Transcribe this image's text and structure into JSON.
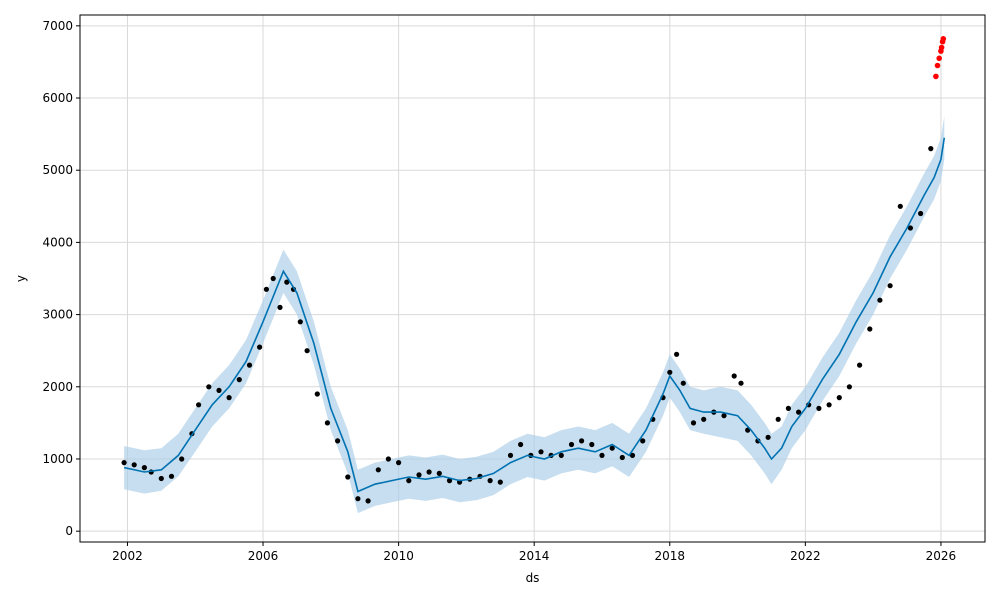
{
  "chart_data": {
    "type": "line",
    "xlabel": "ds",
    "ylabel": "y",
    "grid": true,
    "xlim": [
      2000.6,
      2027.3
    ],
    "ylim": [
      -150,
      7150
    ],
    "x_ticks": [
      {
        "value": 2002,
        "label": "2002"
      },
      {
        "value": 2006,
        "label": "2006"
      },
      {
        "value": 2010,
        "label": "2010"
      },
      {
        "value": 2014,
        "label": "2014"
      },
      {
        "value": 2018,
        "label": "2018"
      },
      {
        "value": 2022,
        "label": "2022"
      },
      {
        "value": 2026,
        "label": "2026"
      }
    ],
    "y_ticks": [
      {
        "value": 0,
        "label": "0"
      },
      {
        "value": 1000,
        "label": "1000"
      },
      {
        "value": 2000,
        "label": "2000"
      },
      {
        "value": 3000,
        "label": "3000"
      },
      {
        "value": 4000,
        "label": "4000"
      },
      {
        "value": 5000,
        "label": "5000"
      },
      {
        "value": 6000,
        "label": "6000"
      },
      {
        "value": 7000,
        "label": "7000"
      }
    ],
    "colors": {
      "actual": "#000000",
      "forecast_line": "#0072B2",
      "interval": "#a8cde6",
      "recent_actual": "#ff0000",
      "grid": "#d9d9d9"
    },
    "forecast": {
      "x": [
        2001.9,
        2002.5,
        2003.0,
        2003.5,
        2004.0,
        2004.5,
        2005.0,
        2005.5,
        2006.0,
        2006.3,
        2006.6,
        2007.0,
        2007.5,
        2008.0,
        2008.5,
        2008.8,
        2009.3,
        2009.8,
        2010.3,
        2010.8,
        2011.3,
        2011.8,
        2012.3,
        2012.8,
        2013.3,
        2013.8,
        2014.3,
        2014.8,
        2015.3,
        2015.8,
        2016.3,
        2016.8,
        2017.3,
        2017.8,
        2018.0,
        2018.3,
        2018.6,
        2019.0,
        2019.5,
        2020.0,
        2020.4,
        2020.8,
        2021.0,
        2021.3,
        2021.6,
        2022.0,
        2022.5,
        2023.0,
        2023.5,
        2024.0,
        2024.5,
        2025.0,
        2025.5,
        2025.8,
        2026.0,
        2026.1
      ],
      "yhat": [
        880,
        820,
        850,
        1050,
        1400,
        1750,
        2000,
        2350,
        2900,
        3250,
        3600,
        3300,
        2600,
        1700,
        1100,
        550,
        650,
        700,
        750,
        720,
        760,
        700,
        730,
        800,
        950,
        1050,
        1000,
        1100,
        1150,
        1100,
        1200,
        1050,
        1400,
        1900,
        2150,
        1950,
        1700,
        1650,
        1650,
        1600,
        1400,
        1150,
        1000,
        1150,
        1450,
        1700,
        2100,
        2450,
        2900,
        3300,
        3800,
        4200,
        4650,
        4900,
        5150,
        5450
      ],
      "yhat_lower": [
        580,
        520,
        560,
        760,
        1100,
        1450,
        1700,
        2050,
        2600,
        2950,
        3300,
        3000,
        2300,
        1400,
        800,
        250,
        350,
        400,
        450,
        420,
        460,
        400,
        430,
        500,
        650,
        750,
        700,
        800,
        850,
        800,
        900,
        750,
        1100,
        1600,
        1850,
        1650,
        1400,
        1350,
        1300,
        1250,
        1050,
        800,
        650,
        850,
        1150,
        1400,
        1800,
        2150,
        2600,
        3000,
        3500,
        3900,
        4350,
        4600,
        4850,
        5150
      ],
      "yhat_upper": [
        1180,
        1120,
        1150,
        1350,
        1700,
        2050,
        2300,
        2650,
        3200,
        3550,
        3900,
        3600,
        2900,
        2000,
        1400,
        850,
        950,
        1000,
        1050,
        1020,
        1060,
        1000,
        1030,
        1100,
        1250,
        1350,
        1300,
        1400,
        1450,
        1400,
        1500,
        1350,
        1700,
        2200,
        2450,
        2250,
        2000,
        1950,
        2000,
        1950,
        1750,
        1500,
        1350,
        1450,
        1750,
        2000,
        2400,
        2750,
        3200,
        3600,
        4100,
        4500,
        4950,
        5200,
        5450,
        5750
      ]
    },
    "actual": {
      "x": [
        2001.9,
        2002.2,
        2002.5,
        2002.7,
        2003.0,
        2003.3,
        2003.6,
        2003.9,
        2004.1,
        2004.4,
        2004.7,
        2005.0,
        2005.3,
        2005.6,
        2005.9,
        2006.1,
        2006.3,
        2006.5,
        2006.7,
        2006.9,
        2007.1,
        2007.3,
        2007.6,
        2007.9,
        2008.2,
        2008.5,
        2008.8,
        2009.1,
        2009.4,
        2009.7,
        2010.0,
        2010.3,
        2010.6,
        2010.9,
        2011.2,
        2011.5,
        2011.8,
        2012.1,
        2012.4,
        2012.7,
        2013.0,
        2013.3,
        2013.6,
        2013.9,
        2014.2,
        2014.5,
        2014.8,
        2015.1,
        2015.4,
        2015.7,
        2016.0,
        2016.3,
        2016.6,
        2016.9,
        2017.2,
        2017.5,
        2017.8,
        2018.0,
        2018.2,
        2018.4,
        2018.7,
        2019.0,
        2019.3,
        2019.6,
        2019.9,
        2020.1,
        2020.3,
        2020.6,
        2020.9,
        2021.2,
        2021.5,
        2021.8,
        2022.1,
        2022.4,
        2022.7,
        2023.0,
        2023.3,
        2023.6,
        2023.9,
        2024.2,
        2024.5,
        2024.8,
        2025.1,
        2025.4,
        2025.7
      ],
      "y": [
        950,
        920,
        880,
        820,
        730,
        760,
        1000,
        1350,
        1750,
        2000,
        1950,
        1850,
        2100,
        2300,
        2550,
        3350,
        3500,
        3100,
        3450,
        3350,
        2900,
        2500,
        1900,
        1500,
        1250,
        750,
        450,
        420,
        850,
        1000,
        950,
        700,
        780,
        820,
        800,
        700,
        680,
        720,
        760,
        700,
        680,
        1050,
        1200,
        1050,
        1100,
        1050,
        1050,
        1200,
        1250,
        1200,
        1050,
        1150,
        1020,
        1050,
        1250,
        1550,
        1850,
        2200,
        2450,
        2050,
        1500,
        1550,
        1650,
        1600,
        2150,
        2050,
        1400,
        1250,
        1300,
        1550,
        1700,
        1650,
        1750,
        1700,
        1750,
        1850,
        2000,
        2300,
        2800,
        3200,
        3400,
        4500,
        4200,
        4400,
        5300
      ]
    },
    "recent_actual": {
      "x": [
        2025.85,
        2025.9,
        2025.95,
        2026.0,
        2026.02,
        2026.05,
        2026.07
      ],
      "y": [
        6300,
        6450,
        6550,
        6650,
        6700,
        6780,
        6820
      ]
    }
  }
}
